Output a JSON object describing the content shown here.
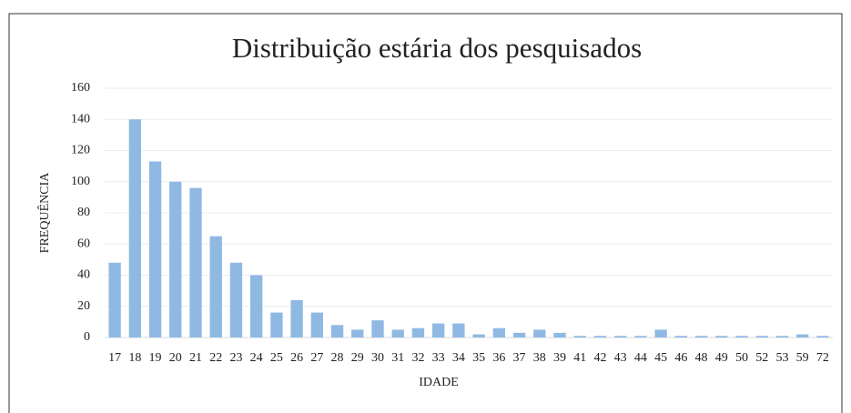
{
  "chart_data": {
    "type": "bar",
    "title": "Distribuição estária dos pesquisados",
    "x_label": "IDADE",
    "y_label": "FREQUÊNCIA",
    "categories": [
      "17",
      "18",
      "19",
      "20",
      "21",
      "22",
      "23",
      "24",
      "25",
      "26",
      "27",
      "28",
      "29",
      "30",
      "31",
      "32",
      "33",
      "34",
      "35",
      "36",
      "37",
      "38",
      "39",
      "41",
      "42",
      "43",
      "44",
      "45",
      "46",
      "48",
      "49",
      "50",
      "52",
      "53",
      "59",
      "72"
    ],
    "values": [
      48,
      140,
      113,
      100,
      96,
      65,
      48,
      40,
      16,
      24,
      16,
      8,
      5,
      11,
      5,
      6,
      9,
      9,
      2,
      6,
      3,
      5,
      3,
      1,
      1,
      1,
      1,
      5,
      1,
      1,
      1,
      1,
      1,
      1,
      2,
      1
    ],
    "color": "#8fb9e3",
    "ylim": [
      0,
      160
    ],
    "yticks": [
      0,
      20,
      40,
      60,
      80,
      100,
      120,
      140,
      160
    ],
    "grid": true
  }
}
